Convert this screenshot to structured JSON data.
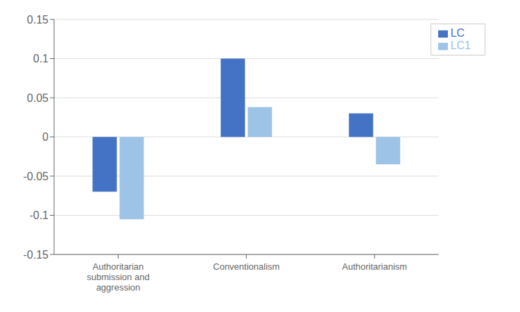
{
  "chart_data": {
    "type": "bar",
    "categories": [
      "Authoritarian\nsubmission and\naggression",
      "Conventionalism",
      "Authoritarianism"
    ],
    "series": [
      {
        "name": "LC",
        "color": "#4472C4",
        "values": [
          -0.07,
          0.1,
          0.03
        ]
      },
      {
        "name": "LC1",
        "color": "#9DC3E6",
        "values": [
          -0.105,
          0.038,
          -0.035
        ]
      }
    ],
    "ylim": [
      -0.15,
      0.15
    ],
    "yticks": [
      -0.15,
      -0.1,
      -0.05,
      0,
      0.05,
      0.1,
      0.15
    ],
    "grid": true,
    "legend": "upper right"
  }
}
